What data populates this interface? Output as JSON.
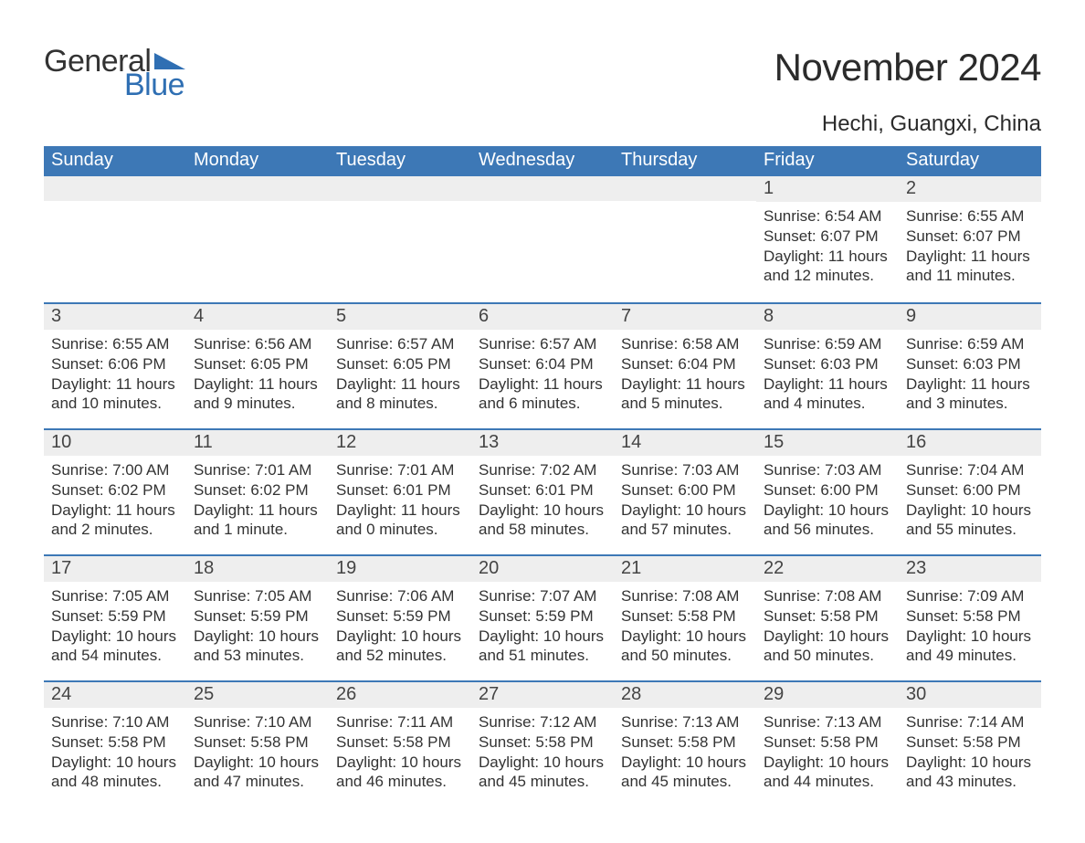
{
  "logo": {
    "general": "General",
    "blue": "Blue",
    "shape_color": "#2f6fb3"
  },
  "title": "November 2024",
  "location": "Hechi, Guangxi, China",
  "header_bg": "#3d78b6",
  "weekdays": [
    "Sunday",
    "Monday",
    "Tuesday",
    "Wednesday",
    "Thursday",
    "Friday",
    "Saturday"
  ],
  "weeks": [
    [
      null,
      null,
      null,
      null,
      null,
      {
        "n": "1",
        "sunrise": "Sunrise: 6:54 AM",
        "sunset": "Sunset: 6:07 PM",
        "day1": "Daylight: 11 hours",
        "day2": "and 12 minutes."
      },
      {
        "n": "2",
        "sunrise": "Sunrise: 6:55 AM",
        "sunset": "Sunset: 6:07 PM",
        "day1": "Daylight: 11 hours",
        "day2": "and 11 minutes."
      }
    ],
    [
      {
        "n": "3",
        "sunrise": "Sunrise: 6:55 AM",
        "sunset": "Sunset: 6:06 PM",
        "day1": "Daylight: 11 hours",
        "day2": "and 10 minutes."
      },
      {
        "n": "4",
        "sunrise": "Sunrise: 6:56 AM",
        "sunset": "Sunset: 6:05 PM",
        "day1": "Daylight: 11 hours",
        "day2": "and 9 minutes."
      },
      {
        "n": "5",
        "sunrise": "Sunrise: 6:57 AM",
        "sunset": "Sunset: 6:05 PM",
        "day1": "Daylight: 11 hours",
        "day2": "and 8 minutes."
      },
      {
        "n": "6",
        "sunrise": "Sunrise: 6:57 AM",
        "sunset": "Sunset: 6:04 PM",
        "day1": "Daylight: 11 hours",
        "day2": "and 6 minutes."
      },
      {
        "n": "7",
        "sunrise": "Sunrise: 6:58 AM",
        "sunset": "Sunset: 6:04 PM",
        "day1": "Daylight: 11 hours",
        "day2": "and 5 minutes."
      },
      {
        "n": "8",
        "sunrise": "Sunrise: 6:59 AM",
        "sunset": "Sunset: 6:03 PM",
        "day1": "Daylight: 11 hours",
        "day2": "and 4 minutes."
      },
      {
        "n": "9",
        "sunrise": "Sunrise: 6:59 AM",
        "sunset": "Sunset: 6:03 PM",
        "day1": "Daylight: 11 hours",
        "day2": "and 3 minutes."
      }
    ],
    [
      {
        "n": "10",
        "sunrise": "Sunrise: 7:00 AM",
        "sunset": "Sunset: 6:02 PM",
        "day1": "Daylight: 11 hours",
        "day2": "and 2 minutes."
      },
      {
        "n": "11",
        "sunrise": "Sunrise: 7:01 AM",
        "sunset": "Sunset: 6:02 PM",
        "day1": "Daylight: 11 hours",
        "day2": "and 1 minute."
      },
      {
        "n": "12",
        "sunrise": "Sunrise: 7:01 AM",
        "sunset": "Sunset: 6:01 PM",
        "day1": "Daylight: 11 hours",
        "day2": "and 0 minutes."
      },
      {
        "n": "13",
        "sunrise": "Sunrise: 7:02 AM",
        "sunset": "Sunset: 6:01 PM",
        "day1": "Daylight: 10 hours",
        "day2": "and 58 minutes."
      },
      {
        "n": "14",
        "sunrise": "Sunrise: 7:03 AM",
        "sunset": "Sunset: 6:00 PM",
        "day1": "Daylight: 10 hours",
        "day2": "and 57 minutes."
      },
      {
        "n": "15",
        "sunrise": "Sunrise: 7:03 AM",
        "sunset": "Sunset: 6:00 PM",
        "day1": "Daylight: 10 hours",
        "day2": "and 56 minutes."
      },
      {
        "n": "16",
        "sunrise": "Sunrise: 7:04 AM",
        "sunset": "Sunset: 6:00 PM",
        "day1": "Daylight: 10 hours",
        "day2": "and 55 minutes."
      }
    ],
    [
      {
        "n": "17",
        "sunrise": "Sunrise: 7:05 AM",
        "sunset": "Sunset: 5:59 PM",
        "day1": "Daylight: 10 hours",
        "day2": "and 54 minutes."
      },
      {
        "n": "18",
        "sunrise": "Sunrise: 7:05 AM",
        "sunset": "Sunset: 5:59 PM",
        "day1": "Daylight: 10 hours",
        "day2": "and 53 minutes."
      },
      {
        "n": "19",
        "sunrise": "Sunrise: 7:06 AM",
        "sunset": "Sunset: 5:59 PM",
        "day1": "Daylight: 10 hours",
        "day2": "and 52 minutes."
      },
      {
        "n": "20",
        "sunrise": "Sunrise: 7:07 AM",
        "sunset": "Sunset: 5:59 PM",
        "day1": "Daylight: 10 hours",
        "day2": "and 51 minutes."
      },
      {
        "n": "21",
        "sunrise": "Sunrise: 7:08 AM",
        "sunset": "Sunset: 5:58 PM",
        "day1": "Daylight: 10 hours",
        "day2": "and 50 minutes."
      },
      {
        "n": "22",
        "sunrise": "Sunrise: 7:08 AM",
        "sunset": "Sunset: 5:58 PM",
        "day1": "Daylight: 10 hours",
        "day2": "and 50 minutes."
      },
      {
        "n": "23",
        "sunrise": "Sunrise: 7:09 AM",
        "sunset": "Sunset: 5:58 PM",
        "day1": "Daylight: 10 hours",
        "day2": "and 49 minutes."
      }
    ],
    [
      {
        "n": "24",
        "sunrise": "Sunrise: 7:10 AM",
        "sunset": "Sunset: 5:58 PM",
        "day1": "Daylight: 10 hours",
        "day2": "and 48 minutes."
      },
      {
        "n": "25",
        "sunrise": "Sunrise: 7:10 AM",
        "sunset": "Sunset: 5:58 PM",
        "day1": "Daylight: 10 hours",
        "day2": "and 47 minutes."
      },
      {
        "n": "26",
        "sunrise": "Sunrise: 7:11 AM",
        "sunset": "Sunset: 5:58 PM",
        "day1": "Daylight: 10 hours",
        "day2": "and 46 minutes."
      },
      {
        "n": "27",
        "sunrise": "Sunrise: 7:12 AM",
        "sunset": "Sunset: 5:58 PM",
        "day1": "Daylight: 10 hours",
        "day2": "and 45 minutes."
      },
      {
        "n": "28",
        "sunrise": "Sunrise: 7:13 AM",
        "sunset": "Sunset: 5:58 PM",
        "day1": "Daylight: 10 hours",
        "day2": "and 45 minutes."
      },
      {
        "n": "29",
        "sunrise": "Sunrise: 7:13 AM",
        "sunset": "Sunset: 5:58 PM",
        "day1": "Daylight: 10 hours",
        "day2": "and 44 minutes."
      },
      {
        "n": "30",
        "sunrise": "Sunrise: 7:14 AM",
        "sunset": "Sunset: 5:58 PM",
        "day1": "Daylight: 10 hours",
        "day2": "and 43 minutes."
      }
    ]
  ]
}
